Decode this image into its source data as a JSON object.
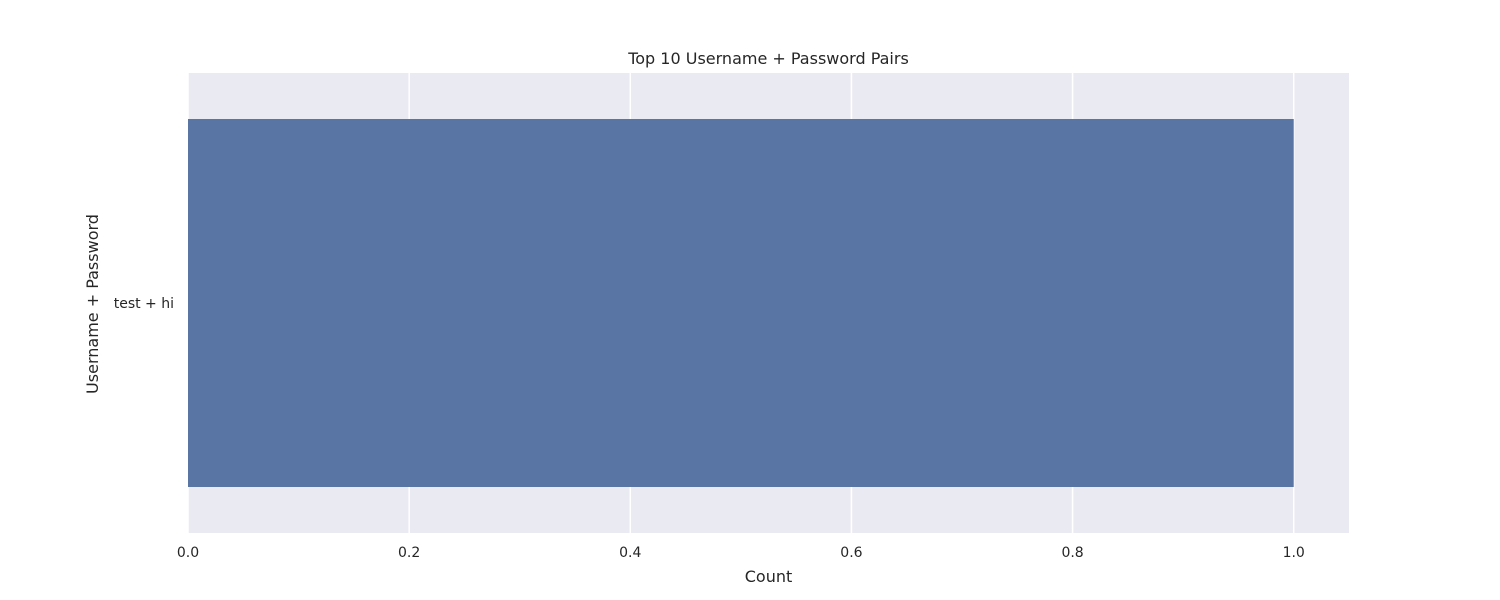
{
  "chart_data": {
    "type": "bar",
    "orientation": "horizontal",
    "title": "Top 10 Username + Password Pairs",
    "xlabel": "Count",
    "ylabel": "Username + Password",
    "categories": [
      "test + hi"
    ],
    "values": [
      1
    ],
    "xlim": [
      0,
      1.05
    ],
    "xticks": [
      "0.0",
      "0.2",
      "0.4",
      "0.6",
      "0.8",
      "1.0"
    ],
    "grid": true,
    "colors": {
      "bar": "#5875a4",
      "plot_background": "#eaeaf2",
      "grid": "#ffffff"
    }
  }
}
